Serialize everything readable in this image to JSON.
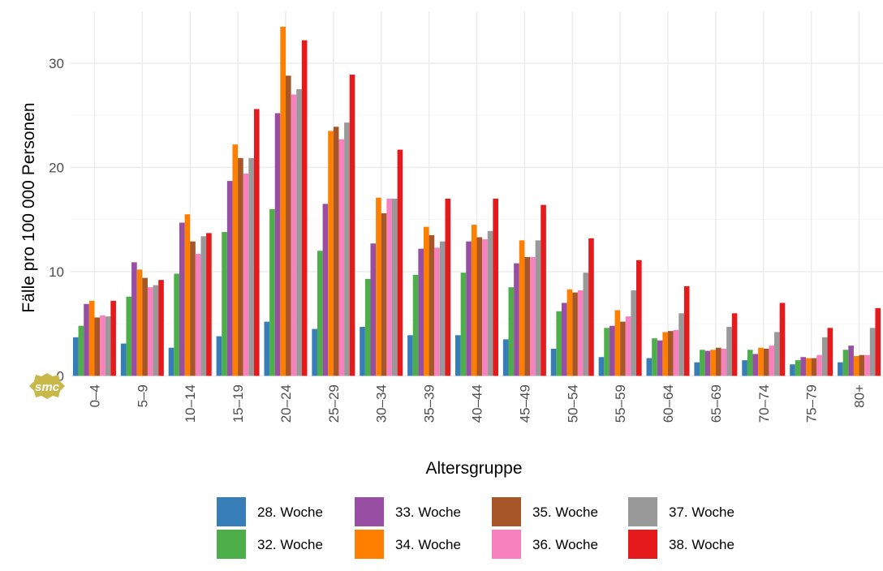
{
  "chart_data": {
    "type": "bar",
    "xlabel": "Altersgruppe",
    "ylabel": "Fälle pro 100 000 Personen",
    "ylim": [
      0,
      34
    ],
    "yticks": [
      0,
      10,
      20,
      30
    ],
    "grid": true,
    "legend_position": "bottom",
    "categories": [
      "0–4",
      "5–9",
      "10–14",
      "15–19",
      "20–24",
      "25–29",
      "30–34",
      "35–39",
      "40–44",
      "45–49",
      "50–54",
      "55–59",
      "60–64",
      "65–69",
      "70–74",
      "75–79",
      "80+"
    ],
    "series": [
      {
        "name": "28. Woche",
        "color": "#377eb8",
        "values": [
          3.7,
          3.1,
          2.7,
          3.8,
          5.2,
          4.5,
          4.7,
          3.9,
          3.9,
          3.5,
          2.6,
          1.8,
          1.7,
          1.3,
          1.5,
          1.1,
          1.3
        ]
      },
      {
        "name": "32. Woche",
        "color": "#4daf4a",
        "values": [
          4.8,
          7.6,
          9.8,
          13.8,
          16.0,
          12.0,
          9.3,
          9.7,
          9.9,
          8.5,
          6.2,
          4.6,
          3.6,
          2.5,
          2.5,
          1.5,
          2.5
        ]
      },
      {
        "name": "33. Woche",
        "color": "#984ea3",
        "values": [
          6.9,
          10.9,
          14.7,
          18.7,
          25.2,
          16.5,
          12.7,
          12.2,
          12.9,
          10.8,
          7.0,
          4.8,
          3.4,
          2.4,
          2.1,
          1.8,
          2.9
        ]
      },
      {
        "name": "34. Woche",
        "color": "#ff7f00",
        "values": [
          7.2,
          10.2,
          15.5,
          22.2,
          33.5,
          23.5,
          17.1,
          14.3,
          14.5,
          13.0,
          8.3,
          6.3,
          4.2,
          2.5,
          2.7,
          1.7,
          1.9
        ]
      },
      {
        "name": "35. Woche",
        "color": "#a65628",
        "values": [
          5.6,
          9.4,
          12.9,
          20.9,
          28.8,
          23.9,
          15.6,
          13.5,
          13.3,
          11.4,
          8.0,
          5.2,
          4.3,
          2.7,
          2.6,
          1.7,
          2.0
        ]
      },
      {
        "name": "36. Woche",
        "color": "#f781bf",
        "values": [
          5.8,
          8.5,
          11.7,
          19.4,
          27.0,
          22.7,
          17.0,
          12.3,
          13.1,
          11.4,
          8.2,
          5.7,
          4.4,
          2.6,
          2.9,
          2.0,
          2.0
        ]
      },
      {
        "name": "37. Woche",
        "color": "#999999",
        "values": [
          5.7,
          8.7,
          13.4,
          20.9,
          27.5,
          24.3,
          17.0,
          12.9,
          13.9,
          13.0,
          9.9,
          8.2,
          6.0,
          4.7,
          4.2,
          3.7,
          4.6
        ]
      },
      {
        "name": "38. Woche",
        "color": "#e41a1c",
        "values": [
          7.2,
          9.2,
          13.7,
          25.6,
          32.2,
          28.9,
          21.7,
          17.0,
          17.0,
          16.4,
          13.2,
          11.1,
          8.6,
          6.0,
          7.0,
          4.6,
          6.5
        ]
      }
    ]
  },
  "logo": {
    "text": "smc",
    "color": "#c8b84a"
  }
}
